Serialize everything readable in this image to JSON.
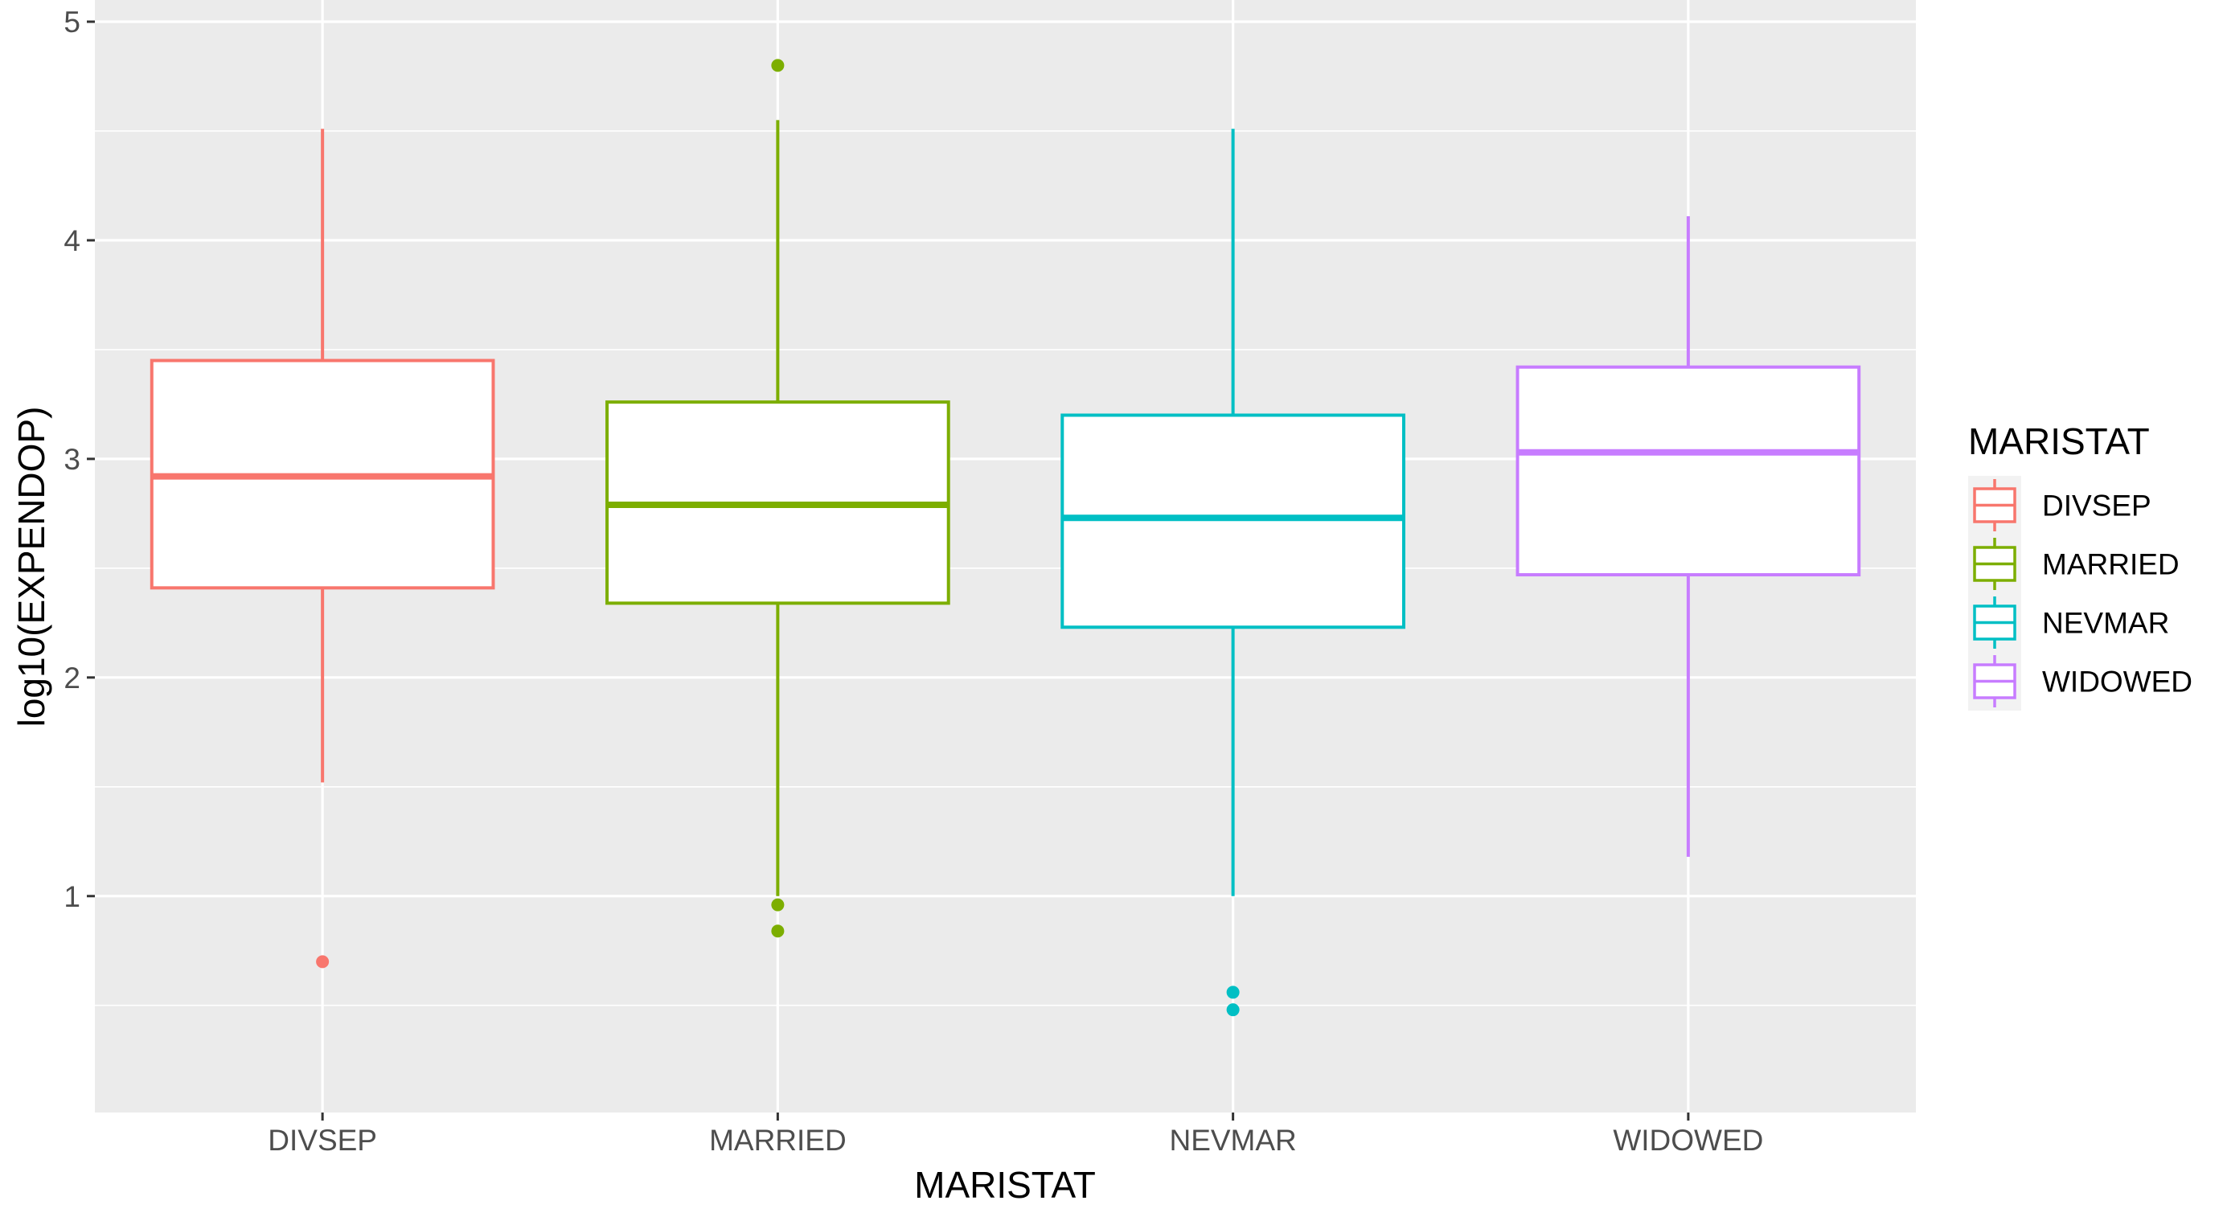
{
  "chart_data": {
    "type": "boxplot",
    "xlabel": "MARISTAT",
    "ylabel": "log10(EXPENDOP)",
    "ylim": [
      0.26,
      5.0
    ],
    "y_ticks": [
      1,
      2,
      3,
      4,
      5
    ],
    "grid": true,
    "legend": {
      "title": "MARISTAT",
      "placement": "right"
    },
    "panel_background": "#ebebeb",
    "grid_color": "#ffffff",
    "categories": [
      "DIVSEP",
      "MARRIED",
      "NEVMAR",
      "WIDOWED"
    ],
    "series": [
      {
        "name": "DIVSEP",
        "color": "#f8766d",
        "q1": 2.41,
        "median": 2.92,
        "q3": 3.45,
        "whisker_low": 1.52,
        "whisker_high": 4.51,
        "outliers": [
          0.7
        ]
      },
      {
        "name": "MARRIED",
        "color": "#7cae00",
        "q1": 2.34,
        "median": 2.79,
        "q3": 3.26,
        "whisker_low": 1.0,
        "whisker_high": 4.55,
        "outliers": [
          4.8,
          0.96,
          0.84
        ]
      },
      {
        "name": "NEVMAR",
        "color": "#00bfc4",
        "q1": 2.23,
        "median": 2.73,
        "q3": 3.2,
        "whisker_low": 1.0,
        "whisker_high": 4.51,
        "outliers": [
          0.56,
          0.48
        ]
      },
      {
        "name": "WIDOWED",
        "color": "#c77cff",
        "q1": 2.47,
        "median": 3.03,
        "q3": 3.42,
        "whisker_low": 1.18,
        "whisker_high": 4.11,
        "outliers": []
      }
    ]
  }
}
